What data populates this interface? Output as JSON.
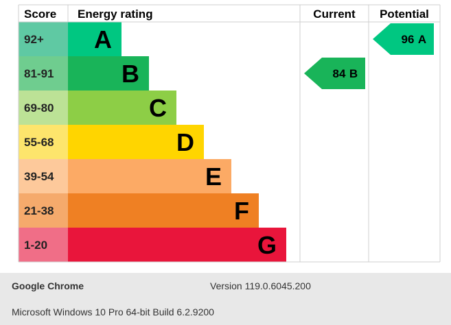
{
  "chart_data": {
    "type": "bar",
    "headers": {
      "score": "Score",
      "rating": "Energy rating",
      "current": "Current",
      "potential": "Potential"
    },
    "bands": [
      {
        "score": "92+",
        "letter": "A",
        "color": "#00c781",
        "score_bg": "#5fc9a3"
      },
      {
        "score": "81-91",
        "letter": "B",
        "color": "#19b459",
        "score_bg": "#6fcd8f"
      },
      {
        "score": "69-80",
        "letter": "C",
        "color": "#8dce46",
        "score_bg": "#bce296"
      },
      {
        "score": "55-68",
        "letter": "D",
        "color": "#ffd500",
        "score_bg": "#fde56c"
      },
      {
        "score": "39-54",
        "letter": "E",
        "color": "#fcaa65",
        "score_bg": "#fdc99b"
      },
      {
        "score": "21-38",
        "letter": "F",
        "color": "#ef8023",
        "score_bg": "#f5aa6c"
      },
      {
        "score": "1-20",
        "letter": "G",
        "color": "#e9153b",
        "score_bg": "#f06e87"
      }
    ],
    "current": {
      "value": 84,
      "band": "B",
      "color": "#19b459"
    },
    "potential": {
      "value": 96,
      "band": "A",
      "color": "#00c781"
    }
  },
  "footer": {
    "browser": "Google Chrome",
    "version": "Version 119.0.6045.200",
    "os": "Microsoft Windows 10 Pro 64-bit Build 6.2.9200"
  }
}
